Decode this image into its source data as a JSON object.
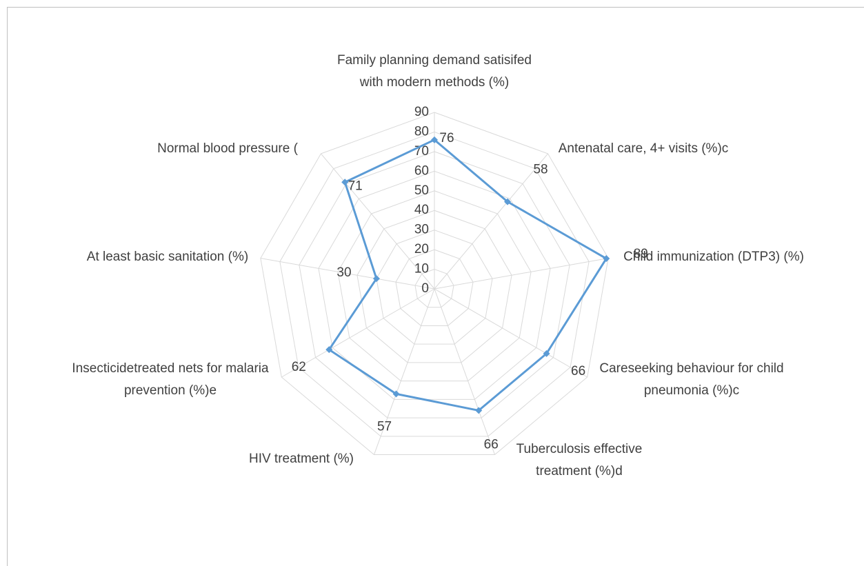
{
  "chart_data": {
    "type": "radar",
    "categories": [
      "Family planning demand satisifed with modern methods (%)",
      "Antenatal care,  4+ visits (%)c",
      "Child immunization (DTP3) (%)",
      "Careseeking behaviour for child pneumonia (%)c",
      "Tuberculosis effective treatment (%)d",
      "HIV treatment (%)",
      "Insecticidetreated nets for malaria prevention (%)e",
      "At least basic sanitation (%)",
      "Normal blood pressure ("
    ],
    "values": [
      76,
      58,
      89,
      66,
      66,
      57,
      62,
      30,
      71
    ],
    "color": "#5b9bd5",
    "ylim": [
      0,
      90
    ],
    "yticks": [
      0,
      10,
      20,
      30,
      40,
      50,
      60,
      70,
      80,
      90
    ],
    "grid": true
  }
}
